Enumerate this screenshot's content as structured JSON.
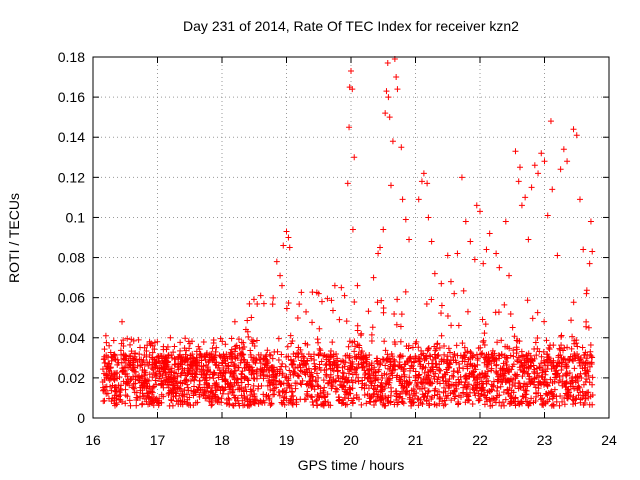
{
  "chart_data": {
    "type": "scatter",
    "title": "Day 231 of 2014, Rate Of TEC Index for receiver kzn2",
    "xlabel": "GPS time / hours",
    "ylabel": "ROTI / TECUs",
    "xlim": [
      16,
      24
    ],
    "ylim": [
      0,
      0.18
    ],
    "xticks": [
      "16",
      "17",
      "18",
      "19",
      "20",
      "21",
      "22",
      "23",
      "24"
    ],
    "yticks": [
      "0",
      "0.02",
      "0.04",
      "0.06",
      "0.08",
      "0.1",
      "0.12",
      "0.14",
      "0.16",
      "0.18"
    ],
    "grid": true,
    "marker": "+",
    "color": "#ff0000",
    "series": [
      {
        "name": "ROTI",
        "points": [
          [
            16.2,
            0.041
          ],
          [
            16.25,
            0.036
          ],
          [
            16.45,
            0.048
          ],
          [
            16.8,
            0.035
          ],
          [
            17.2,
            0.04
          ],
          [
            17.9,
            0.033
          ],
          [
            18.2,
            0.048
          ],
          [
            18.4,
            0.043
          ],
          [
            18.6,
            0.061
          ],
          [
            18.65,
            0.057
          ],
          [
            18.85,
            0.078
          ],
          [
            18.9,
            0.071
          ],
          [
            18.93,
            0.066
          ],
          [
            18.95,
            0.086
          ],
          [
            19.0,
            0.093
          ],
          [
            19.05,
            0.085
          ],
          [
            19.03,
            0.09
          ],
          [
            19.5,
            0.062
          ],
          [
            19.55,
            0.058
          ],
          [
            19.75,
            0.066
          ],
          [
            19.85,
            0.065
          ],
          [
            19.9,
            0.061
          ],
          [
            19.95,
            0.117
          ],
          [
            19.97,
            0.145
          ],
          [
            19.98,
            0.165
          ],
          [
            20.0,
            0.173
          ],
          [
            20.02,
            0.164
          ],
          [
            20.03,
            0.094
          ],
          [
            20.05,
            0.13
          ],
          [
            20.1,
            0.066
          ],
          [
            20.35,
            0.07
          ],
          [
            20.42,
            0.082
          ],
          [
            20.45,
            0.085
          ],
          [
            20.5,
            0.094
          ],
          [
            20.53,
            0.152
          ],
          [
            20.55,
            0.163
          ],
          [
            20.57,
            0.177
          ],
          [
            20.58,
            0.16
          ],
          [
            20.6,
            0.15
          ],
          [
            20.62,
            0.116
          ],
          [
            20.65,
            0.138
          ],
          [
            20.68,
            0.179
          ],
          [
            20.7,
            0.17
          ],
          [
            20.72,
            0.164
          ],
          [
            20.78,
            0.135
          ],
          [
            20.8,
            0.109
          ],
          [
            20.85,
            0.099
          ],
          [
            20.9,
            0.089
          ],
          [
            21.05,
            0.109
          ],
          [
            21.1,
            0.118
          ],
          [
            21.13,
            0.122
          ],
          [
            21.18,
            0.117
          ],
          [
            21.2,
            0.1
          ],
          [
            21.25,
            0.088
          ],
          [
            21.3,
            0.072
          ],
          [
            21.4,
            0.067
          ],
          [
            21.5,
            0.081
          ],
          [
            21.55,
            0.068
          ],
          [
            21.6,
            0.062
          ],
          [
            21.65,
            0.082
          ],
          [
            21.72,
            0.12
          ],
          [
            21.78,
            0.098
          ],
          [
            21.85,
            0.088
          ],
          [
            21.92,
            0.079
          ],
          [
            21.95,
            0.106
          ],
          [
            22.0,
            0.103
          ],
          [
            22.05,
            0.077
          ],
          [
            22.1,
            0.084
          ],
          [
            22.15,
            0.092
          ],
          [
            22.25,
            0.082
          ],
          [
            22.3,
            0.075
          ],
          [
            22.4,
            0.098
          ],
          [
            22.45,
            0.071
          ],
          [
            22.55,
            0.133
          ],
          [
            22.6,
            0.118
          ],
          [
            22.62,
            0.125
          ],
          [
            22.65,
            0.106
          ],
          [
            22.7,
            0.11
          ],
          [
            22.75,
            0.089
          ],
          [
            22.8,
            0.115
          ],
          [
            22.85,
            0.126
          ],
          [
            22.9,
            0.122
          ],
          [
            22.95,
            0.132
          ],
          [
            23.0,
            0.128
          ],
          [
            23.05,
            0.101
          ],
          [
            23.1,
            0.148
          ],
          [
            23.12,
            0.114
          ],
          [
            23.2,
            0.081
          ],
          [
            23.25,
            0.124
          ],
          [
            23.3,
            0.134
          ],
          [
            23.35,
            0.128
          ],
          [
            23.45,
            0.144
          ],
          [
            23.5,
            0.141
          ],
          [
            23.55,
            0.109
          ],
          [
            23.6,
            0.084
          ],
          [
            23.65,
            0.062
          ],
          [
            23.7,
            0.077
          ],
          [
            23.72,
            0.098
          ],
          [
            23.74,
            0.083
          ]
        ]
      }
    ]
  }
}
